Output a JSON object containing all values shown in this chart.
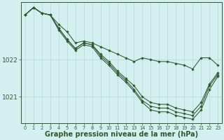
{
  "bg_color": "#d4efef",
  "grid_color": "#b8dede",
  "line_color": "#2d5a2d",
  "marker_color": "#2d5a2d",
  "xlabel": "Graphe pression niveau de la mer (hPa)",
  "xlabel_fontsize": 7.0,
  "ylabel_fontsize": 6.5,
  "xlim": [
    -0.5,
    23.5
  ],
  "ylim": [
    1020.3,
    1023.55
  ],
  "yticks": [
    1021,
    1022
  ],
  "xticks": [
    0,
    1,
    2,
    3,
    4,
    5,
    6,
    7,
    8,
    9,
    10,
    11,
    12,
    13,
    14,
    15,
    16,
    17,
    18,
    19,
    20,
    21,
    22,
    23
  ],
  "series": [
    [
      1023.2,
      1023.4,
      1023.25,
      1023.2,
      1022.95,
      1022.75,
      1022.45,
      1022.5,
      1022.45,
      1022.35,
      1022.25,
      1022.15,
      1022.05,
      1021.95,
      1022.05,
      1022.0,
      1021.95,
      1021.95,
      1021.9,
      1021.85,
      1021.75,
      1022.05,
      1022.05,
      1021.85
    ],
    [
      1023.2,
      1023.4,
      1023.25,
      1023.2,
      1022.85,
      1022.55,
      1022.3,
      1022.45,
      1022.4,
      1022.15,
      1021.95,
      1021.7,
      1021.5,
      1021.3,
      1021.0,
      1020.85,
      1020.8,
      1020.8,
      1020.7,
      1020.65,
      1020.6,
      1020.85,
      1021.35,
      1021.65
    ],
    [
      1023.2,
      1023.4,
      1023.25,
      1023.2,
      1022.85,
      1022.55,
      1022.3,
      1022.45,
      1022.4,
      1022.1,
      1021.9,
      1021.65,
      1021.45,
      1021.2,
      1020.9,
      1020.75,
      1020.7,
      1020.7,
      1020.6,
      1020.55,
      1020.5,
      1020.75,
      1021.3,
      1021.6
    ],
    [
      1023.2,
      1023.4,
      1023.25,
      1023.2,
      1022.8,
      1022.5,
      1022.25,
      1022.4,
      1022.35,
      1022.05,
      1021.85,
      1021.6,
      1021.4,
      1021.15,
      1020.85,
      1020.65,
      1020.6,
      1020.6,
      1020.5,
      1020.45,
      1020.4,
      1020.65,
      1021.2,
      1021.55
    ]
  ]
}
